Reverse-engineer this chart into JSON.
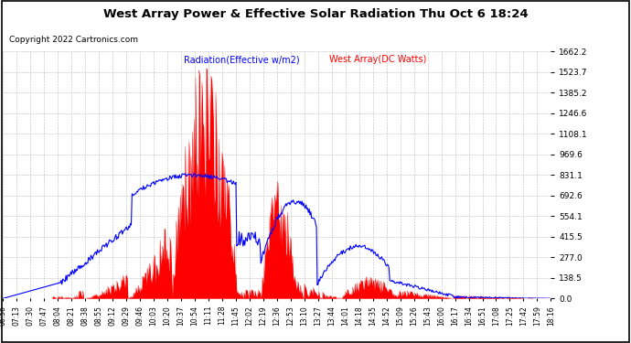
{
  "title": "West Array Power & Effective Solar Radiation Thu Oct 6 18:24",
  "copyright": "Copyright 2022 Cartronics.com",
  "legend_radiation": "Radiation(Effective w/m2)",
  "legend_west": "West Array(DC Watts)",
  "radiation_color": "blue",
  "west_color": "red",
  "background_color": "white",
  "grid_color": "#bbbbbb",
  "ymax": 1662.2,
  "ymin": 0.0,
  "yticks": [
    0.0,
    138.5,
    277.0,
    415.5,
    554.1,
    692.6,
    831.1,
    969.6,
    1108.1,
    1246.6,
    1385.2,
    1523.7,
    1662.2
  ],
  "x_labels": [
    "06:56",
    "07:13",
    "07:30",
    "07:47",
    "08:04",
    "08:21",
    "08:38",
    "08:55",
    "09:12",
    "09:29",
    "09:46",
    "10:03",
    "10:20",
    "10:37",
    "10:54",
    "11:11",
    "11:28",
    "11:45",
    "12:02",
    "12:19",
    "12:36",
    "12:53",
    "13:10",
    "13:27",
    "13:44",
    "14:01",
    "14:18",
    "14:35",
    "14:52",
    "15:09",
    "15:26",
    "15:43",
    "16:00",
    "16:17",
    "16:34",
    "16:51",
    "17:08",
    "17:25",
    "17:42",
    "17:59",
    "18:16"
  ]
}
